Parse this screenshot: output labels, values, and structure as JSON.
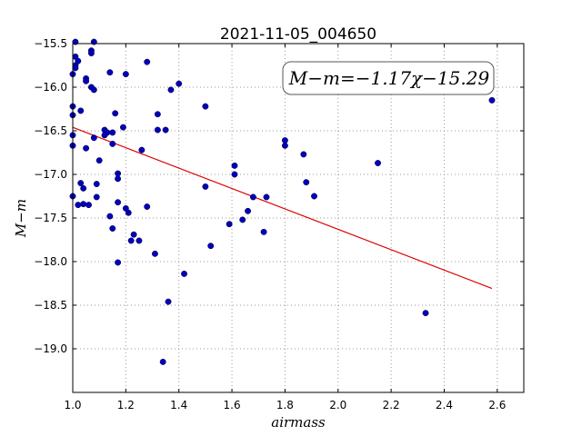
{
  "chart_data": {
    "type": "scatter",
    "title": "2021-11-05_004650",
    "xlabel": "airmass",
    "ylabel": "M−m",
    "xlim": [
      1.0,
      2.7
    ],
    "ylim": [
      -19.5,
      -15.5
    ],
    "y_inverted": true,
    "grid": true,
    "x_ticks": [
      1.0,
      1.2,
      1.4,
      1.6,
      1.8,
      2.0,
      2.2,
      2.4,
      2.6
    ],
    "x_tick_labels": [
      "1.0",
      "1.2",
      "1.4",
      "1.6",
      "1.8",
      "2.0",
      "2.2",
      "2.4",
      "2.6"
    ],
    "y_ticks": [
      -15.5,
      -16.0,
      -16.5,
      -17.0,
      -17.5,
      -18.0,
      -18.5,
      -19.0
    ],
    "y_tick_labels": [
      "−15.5",
      "−16.0",
      "−16.5",
      "−17.0",
      "−17.5",
      "−18.0",
      "−18.5",
      "−19.0"
    ],
    "annotation": "M−m=−1.17χ−15.29",
    "colors": {
      "points": "#0000bb",
      "fit": "#dd0000",
      "grid": "#999999"
    },
    "series": [
      {
        "name": "stars",
        "kind": "scatter",
        "points": [
          [
            1.0,
            -15.85
          ],
          [
            1.0,
            -16.22
          ],
          [
            1.0,
            -16.32
          ],
          [
            1.0,
            -16.55
          ],
          [
            1.0,
            -16.67
          ],
          [
            1.0,
            -17.25
          ],
          [
            1.01,
            -15.48
          ],
          [
            1.01,
            -15.65
          ],
          [
            1.01,
            -15.75
          ],
          [
            1.01,
            -15.78
          ],
          [
            1.02,
            -15.7
          ],
          [
            1.02,
            -17.35
          ],
          [
            1.03,
            -16.27
          ],
          [
            1.03,
            -17.1
          ],
          [
            1.04,
            -17.16
          ],
          [
            1.04,
            -17.34
          ],
          [
            1.05,
            -15.9
          ],
          [
            1.05,
            -15.93
          ],
          [
            1.05,
            -16.7
          ],
          [
            1.06,
            -17.35
          ],
          [
            1.07,
            -15.58
          ],
          [
            1.07,
            -15.61
          ],
          [
            1.07,
            -16.0
          ],
          [
            1.08,
            -15.48
          ],
          [
            1.08,
            -16.03
          ],
          [
            1.08,
            -16.58
          ],
          [
            1.09,
            -17.11
          ],
          [
            1.09,
            -17.26
          ],
          [
            1.1,
            -16.84
          ],
          [
            1.12,
            -16.49
          ],
          [
            1.12,
            -16.55
          ],
          [
            1.13,
            -16.52
          ],
          [
            1.14,
            -15.83
          ],
          [
            1.14,
            -17.48
          ],
          [
            1.15,
            -16.65
          ],
          [
            1.15,
            -16.52
          ],
          [
            1.15,
            -17.62
          ],
          [
            1.16,
            -16.3
          ],
          [
            1.17,
            -16.99
          ],
          [
            1.17,
            -17.05
          ],
          [
            1.17,
            -17.32
          ],
          [
            1.17,
            -18.01
          ],
          [
            1.19,
            -16.46
          ],
          [
            1.2,
            -15.85
          ],
          [
            1.2,
            -17.39
          ],
          [
            1.21,
            -17.44
          ],
          [
            1.22,
            -17.76
          ],
          [
            1.23,
            -17.69
          ],
          [
            1.25,
            -17.76
          ],
          [
            1.26,
            -16.72
          ],
          [
            1.28,
            -15.71
          ],
          [
            1.28,
            -17.37
          ],
          [
            1.31,
            -17.91
          ],
          [
            1.32,
            -16.31
          ],
          [
            1.32,
            -16.49
          ],
          [
            1.34,
            -19.15
          ],
          [
            1.35,
            -16.49
          ],
          [
            1.36,
            -18.46
          ],
          [
            1.37,
            -16.03
          ],
          [
            1.4,
            -15.96
          ],
          [
            1.42,
            -18.14
          ],
          [
            1.5,
            -16.22
          ],
          [
            1.5,
            -17.14
          ],
          [
            1.52,
            -17.82
          ],
          [
            1.59,
            -17.57
          ],
          [
            1.61,
            -16.9
          ],
          [
            1.61,
            -17.0
          ],
          [
            1.64,
            -17.52
          ],
          [
            1.66,
            -17.42
          ],
          [
            1.68,
            -17.26
          ],
          [
            1.72,
            -17.66
          ],
          [
            1.73,
            -17.26
          ],
          [
            1.8,
            -16.61
          ],
          [
            1.8,
            -16.67
          ],
          [
            1.87,
            -16.77
          ],
          [
            1.88,
            -17.09
          ],
          [
            1.91,
            -17.25
          ],
          [
            2.15,
            -16.87
          ],
          [
            2.33,
            -18.59
          ],
          [
            2.58,
            -16.15
          ]
        ]
      },
      {
        "name": "fit",
        "kind": "line",
        "points": [
          [
            1.0,
            -16.46
          ],
          [
            2.58,
            -18.308
          ]
        ]
      }
    ]
  }
}
